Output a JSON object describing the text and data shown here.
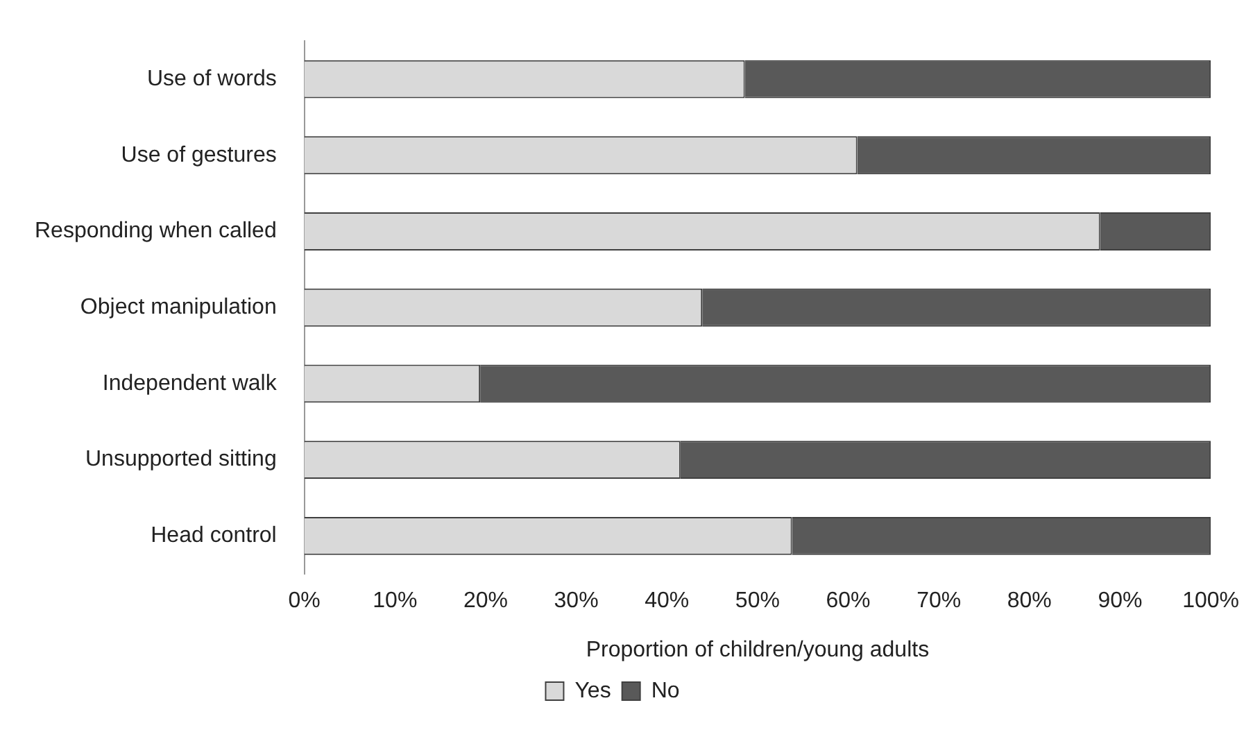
{
  "chart_data": {
    "type": "bar",
    "orientation": "horizontal",
    "stacked": true,
    "categories": [
      "Use of words",
      "Use of gestures",
      "Responding when called",
      "Object manipulation",
      "Independent walk",
      "Unsupported sitting",
      "Head control"
    ],
    "series": [
      {
        "name": "Yes",
        "color": "#d9d9d9",
        "values": [
          48.6,
          61,
          87.8,
          43.9,
          19.4,
          41.5,
          53.8
        ]
      },
      {
        "name": "No",
        "color": "#595959",
        "values": [
          51.4,
          39,
          12.2,
          56.1,
          80.6,
          58.5,
          46.2
        ]
      }
    ],
    "xlabel": "Proportion of children/young adults",
    "xlim": [
      0,
      100
    ],
    "xticks": [
      {
        "value": 0,
        "label": "0%"
      },
      {
        "value": 10,
        "label": "10%"
      },
      {
        "value": 20,
        "label": "20%"
      },
      {
        "value": 30,
        "label": "30%"
      },
      {
        "value": 40,
        "label": "40%"
      },
      {
        "value": 50,
        "label": "50%"
      },
      {
        "value": 60,
        "label": "60%"
      },
      {
        "value": 70,
        "label": "70%"
      },
      {
        "value": 80,
        "label": "80%"
      },
      {
        "value": 90,
        "label": "90%"
      },
      {
        "value": 100,
        "label": "100%"
      }
    ],
    "grid": false,
    "legend": "bottom"
  }
}
